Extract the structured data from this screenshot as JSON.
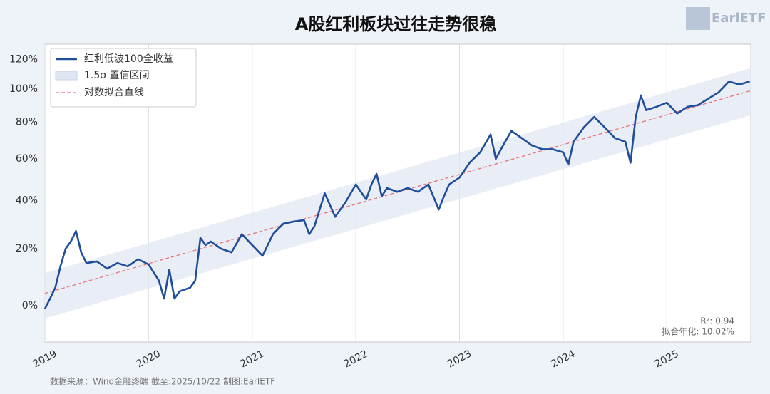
{
  "chart_data": {
    "type": "line",
    "title": "A股红利板块过往走势很稳",
    "logo": "EarlETF",
    "source": "数据来源：Wind金融终端 截至:2025/10/22 制图:EarlETF",
    "annotations": [
      "R²: 0.94",
      "拟合年化: 10.02%"
    ],
    "log_scale": true,
    "grid": true,
    "legend_position": "upper left",
    "xlim": [
      2019,
      2025.81
    ],
    "xticks": [
      2019,
      2020,
      2021,
      2022,
      2023,
      2024,
      2025
    ],
    "ylim": [
      -11,
      131
    ],
    "yticks": [
      {
        "value": 0,
        "label": "0%"
      },
      {
        "value": 20,
        "label": "20%"
      },
      {
        "value": 40,
        "label": "40%"
      },
      {
        "value": 60,
        "label": "60%"
      },
      {
        "value": 80,
        "label": "80%"
      },
      {
        "value": 100,
        "label": "100%"
      },
      {
        "value": 120,
        "label": "120%"
      }
    ],
    "series": [
      {
        "name": "红利低波100全收益",
        "color": "#1f4e9a",
        "x": [
          2019.0,
          2019.05,
          2019.1,
          2019.15,
          2019.2,
          2019.25,
          2019.3,
          2019.35,
          2019.4,
          2019.5,
          2019.6,
          2019.7,
          2019.8,
          2019.9,
          2020.0,
          2020.1,
          2020.15,
          2020.2,
          2020.25,
          2020.3,
          2020.4,
          2020.45,
          2020.5,
          2020.55,
          2020.6,
          2020.7,
          2020.8,
          2020.9,
          2021.0,
          2021.1,
          2021.2,
          2021.3,
          2021.4,
          2021.5,
          2021.55,
          2021.6,
          2021.7,
          2021.8,
          2021.9,
          2022.0,
          2022.1,
          2022.15,
          2022.2,
          2022.25,
          2022.3,
          2022.4,
          2022.5,
          2022.6,
          2022.7,
          2022.8,
          2022.85,
          2022.9,
          2023.0,
          2023.1,
          2023.2,
          2023.3,
          2023.35,
          2023.4,
          2023.5,
          2023.6,
          2023.7,
          2023.8,
          2023.9,
          2024.0,
          2024.05,
          2024.1,
          2024.2,
          2024.3,
          2024.4,
          2024.5,
          2024.6,
          2024.65,
          2024.7,
          2024.75,
          2024.8,
          2024.9,
          2025.0,
          2025.1,
          2025.2,
          2025.3,
          2025.4,
          2025.5,
          2025.6,
          2025.7,
          2025.8
        ],
        "values": [
          -1,
          2.3,
          5.9,
          13.4,
          20,
          22.8,
          27,
          18.6,
          14.6,
          15.2,
          12.6,
          14.6,
          13.4,
          16,
          14.1,
          8.3,
          2.3,
          12.2,
          2.3,
          4.7,
          5.9,
          8.3,
          24.2,
          21.4,
          22.8,
          20,
          18.6,
          25.7,
          21.4,
          17.3,
          25.7,
          30,
          30.9,
          31.5,
          25.7,
          28.9,
          43.3,
          32.9,
          39.2,
          47.4,
          40.5,
          47.4,
          52.5,
          41.9,
          45.7,
          44,
          45.7,
          44,
          47.4,
          36,
          41.9,
          47.4,
          50.7,
          58.2,
          63.4,
          73,
          60,
          65,
          75,
          71,
          67,
          65,
          65,
          63.4,
          57.1,
          69,
          77,
          83,
          77,
          71,
          69,
          58,
          83,
          96,
          87,
          89,
          91.5,
          85,
          89,
          90,
          94,
          98,
          105,
          103,
          105
        ]
      },
      {
        "name": "对数拟合直线",
        "color": "#e8737a",
        "dashed": true,
        "x": [
          2019,
          2025.81
        ],
        "values": [
          4,
          99
        ]
      }
    ],
    "band": {
      "name": "1.5σ 置信区间",
      "color": "#dfe5f1",
      "x": [
        2019,
        2025.81
      ],
      "lower": [
        -4,
        84
      ],
      "upper": [
        11,
        114
      ]
    }
  }
}
